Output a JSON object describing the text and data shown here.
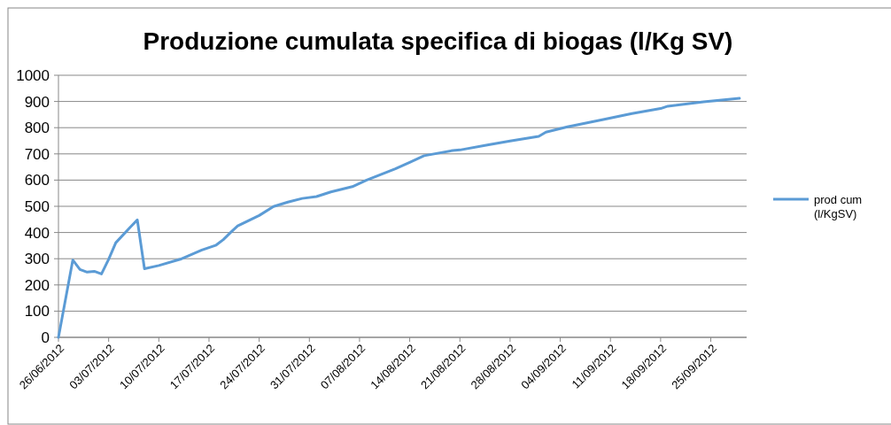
{
  "chart_data": {
    "type": "line",
    "title": "Produzione cumulata specifica di biogas (l/Kg SV)",
    "x": [
      "2012-06-26",
      "2012-06-28",
      "2012-06-29",
      "2012-06-30",
      "2012-07-01",
      "2012-07-02",
      "2012-07-03",
      "2012-07-04",
      "2012-07-06",
      "2012-07-07",
      "2012-07-08",
      "2012-07-10",
      "2012-07-13",
      "2012-07-16",
      "2012-07-18",
      "2012-07-19",
      "2012-07-20",
      "2012-07-21",
      "2012-07-24",
      "2012-07-26",
      "2012-07-28",
      "2012-07-30",
      "2012-08-01",
      "2012-08-03",
      "2012-08-06",
      "2012-08-08",
      "2012-08-12",
      "2012-08-14",
      "2012-08-16",
      "2012-08-20",
      "2012-08-21",
      "2012-08-25",
      "2012-08-28",
      "2012-09-01",
      "2012-09-02",
      "2012-09-05",
      "2012-09-10",
      "2012-09-14",
      "2012-09-18",
      "2012-09-19",
      "2012-09-24",
      "2012-09-29"
    ],
    "series": [
      {
        "name": "prod cum (l/KgSV)",
        "color": "#5b9bd5",
        "values": [
          0,
          295,
          259,
          249,
          252,
          242,
          298,
          361,
          420,
          448,
          262,
          274,
          298,
          333,
          352,
          373,
          400,
          425,
          465,
          499,
          516,
          530,
          537,
          555,
          575,
          600,
          643,
          668,
          693,
          713,
          715,
          735,
          749,
          767,
          783,
          803,
          831,
          854,
          873,
          882,
          899,
          912
        ]
      }
    ],
    "xlim": [
      "2012-06-26",
      "2012-09-30"
    ],
    "xticks": [
      {
        "value": "2012-06-26",
        "label": "26/06/2012"
      },
      {
        "value": "2012-07-03",
        "label": "03/07/2012"
      },
      {
        "value": "2012-07-10",
        "label": "10/07/2012"
      },
      {
        "value": "2012-07-17",
        "label": "17/07/2012"
      },
      {
        "value": "2012-07-24",
        "label": "24/07/2012"
      },
      {
        "value": "2012-07-31",
        "label": "31/07/2012"
      },
      {
        "value": "2012-08-07",
        "label": "07/08/2012"
      },
      {
        "value": "2012-08-14",
        "label": "14/08/2012"
      },
      {
        "value": "2012-08-21",
        "label": "21/08/2012"
      },
      {
        "value": "2012-08-28",
        "label": "28/08/2012"
      },
      {
        "value": "2012-09-04",
        "label": "04/09/2012"
      },
      {
        "value": "2012-09-11",
        "label": "11/09/2012"
      },
      {
        "value": "2012-09-18",
        "label": "18/09/2012"
      },
      {
        "value": "2012-09-25",
        "label": "25/09/2012"
      }
    ],
    "ylim": [
      0,
      1000
    ],
    "yticks": [
      0,
      100,
      200,
      300,
      400,
      500,
      600,
      700,
      800,
      900,
      1000
    ],
    "grid": "y",
    "legend": "right",
    "marker": "none",
    "line_style": "solid"
  }
}
